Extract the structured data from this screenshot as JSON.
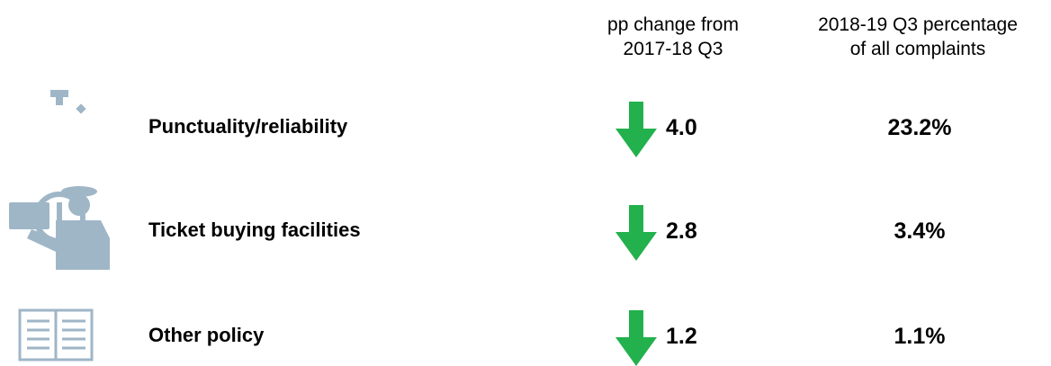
{
  "header": {
    "change": [
      "pp change from",
      "2017-18 Q3"
    ],
    "percentage": [
      "2018-19 Q3 percentage",
      "of all complaints"
    ]
  },
  "rows": [
    {
      "label": "Punctuality/reliability",
      "change": "4.0",
      "percentage": "23.2%"
    },
    {
      "label": "Ticket buying facilities",
      "change": "2.8",
      "percentage": "3.4%"
    },
    {
      "label": "Other policy",
      "change": "1.2",
      "percentage": "1.1%"
    }
  ]
}
